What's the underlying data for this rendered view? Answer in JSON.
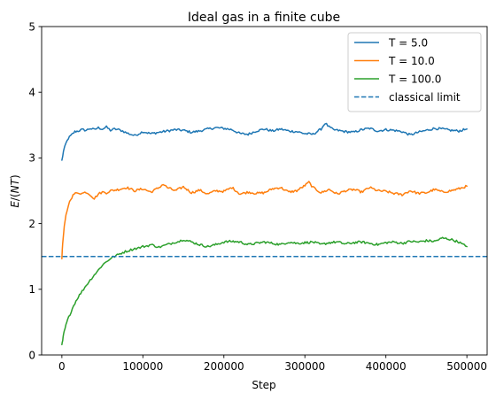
{
  "chart_data": {
    "type": "line",
    "title": "Ideal gas in a finite cube",
    "xlabel": "Step",
    "ylabel_prefix": "E",
    "ylabel_open": "/(",
    "ylabel_italic": "NT",
    "ylabel_close": ")",
    "xlim": [
      -25000,
      525000
    ],
    "ylim": [
      0,
      5
    ],
    "xticks": [
      0,
      100000,
      200000,
      300000,
      400000,
      500000
    ],
    "xtick_labels": [
      "0",
      "100000",
      "200000",
      "300000",
      "400000",
      "500000"
    ],
    "yticks": [
      0,
      1,
      2,
      3,
      4,
      5
    ],
    "ytick_labels": [
      "0",
      "1",
      "2",
      "3",
      "4",
      "5"
    ],
    "grid": false,
    "legend_position": "top-right",
    "series": [
      {
        "name": "T = 5.0",
        "color": "#1f77b4",
        "style": "solid",
        "x": [
          0,
          2000,
          5000,
          8000,
          12000,
          16000,
          20000,
          25000,
          30000,
          35000,
          40000,
          45000,
          50000,
          55000,
          60000,
          65000,
          70000,
          75000,
          80000,
          85000,
          90000,
          95000,
          100000,
          110000,
          120000,
          130000,
          140000,
          150000,
          160000,
          170000,
          180000,
          190000,
          200000,
          210000,
          220000,
          230000,
          240000,
          250000,
          260000,
          270000,
          280000,
          290000,
          300000,
          310000,
          320000,
          325000,
          330000,
          335000,
          340000,
          350000,
          360000,
          370000,
          380000,
          390000,
          400000,
          410000,
          420000,
          430000,
          440000,
          450000,
          460000,
          470000,
          480000,
          490000,
          500000
        ],
        "y": [
          2.96,
          3.1,
          3.22,
          3.3,
          3.35,
          3.4,
          3.41,
          3.43,
          3.42,
          3.45,
          3.43,
          3.46,
          3.44,
          3.47,
          3.42,
          3.44,
          3.43,
          3.41,
          3.38,
          3.36,
          3.34,
          3.37,
          3.4,
          3.37,
          3.39,
          3.41,
          3.43,
          3.42,
          3.39,
          3.41,
          3.44,
          3.46,
          3.45,
          3.43,
          3.37,
          3.36,
          3.41,
          3.44,
          3.41,
          3.44,
          3.41,
          3.4,
          3.37,
          3.36,
          3.44,
          3.53,
          3.47,
          3.43,
          3.42,
          3.4,
          3.39,
          3.43,
          3.45,
          3.41,
          3.43,
          3.42,
          3.4,
          3.35,
          3.39,
          3.42,
          3.45,
          3.44,
          3.42,
          3.41,
          3.44
        ]
      },
      {
        "name": "T = 10.0",
        "color": "#ff7f0e",
        "style": "solid",
        "x": [
          0,
          1000,
          3000,
          5000,
          8000,
          11000,
          15000,
          20000,
          25000,
          30000,
          35000,
          40000,
          45000,
          50000,
          55000,
          60000,
          70000,
          80000,
          90000,
          100000,
          110000,
          120000,
          125000,
          130000,
          140000,
          150000,
          160000,
          170000,
          180000,
          190000,
          200000,
          210000,
          220000,
          230000,
          240000,
          250000,
          260000,
          270000,
          280000,
          290000,
          300000,
          305000,
          310000,
          320000,
          330000,
          340000,
          350000,
          360000,
          370000,
          380000,
          390000,
          400000,
          410000,
          420000,
          430000,
          440000,
          450000,
          460000,
          470000,
          480000,
          490000,
          500000
        ],
        "y": [
          1.48,
          1.7,
          1.95,
          2.12,
          2.28,
          2.38,
          2.45,
          2.47,
          2.46,
          2.48,
          2.44,
          2.38,
          2.45,
          2.48,
          2.47,
          2.5,
          2.52,
          2.55,
          2.5,
          2.53,
          2.48,
          2.55,
          2.6,
          2.55,
          2.5,
          2.56,
          2.47,
          2.51,
          2.45,
          2.5,
          2.49,
          2.55,
          2.45,
          2.48,
          2.46,
          2.47,
          2.53,
          2.55,
          2.48,
          2.5,
          2.58,
          2.63,
          2.55,
          2.47,
          2.52,
          2.45,
          2.5,
          2.52,
          2.48,
          2.55,
          2.5,
          2.49,
          2.46,
          2.44,
          2.5,
          2.46,
          2.47,
          2.52,
          2.48,
          2.5,
          2.53,
          2.57
        ]
      },
      {
        "name": "T = 100.0",
        "color": "#2ca02c",
        "style": "solid",
        "x": [
          0,
          1000,
          2000,
          3000,
          5000,
          7000,
          10000,
          13000,
          16000,
          20000,
          25000,
          30000,
          35000,
          40000,
          45000,
          50000,
          55000,
          60000,
          65000,
          70000,
          75000,
          80000,
          85000,
          90000,
          95000,
          100000,
          105000,
          110000,
          115000,
          120000,
          125000,
          130000,
          135000,
          140000,
          145000,
          150000,
          160000,
          170000,
          180000,
          190000,
          200000,
          210000,
          220000,
          230000,
          240000,
          250000,
          260000,
          270000,
          280000,
          290000,
          300000,
          310000,
          320000,
          330000,
          340000,
          350000,
          360000,
          370000,
          380000,
          390000,
          400000,
          410000,
          420000,
          430000,
          440000,
          450000,
          460000,
          470000,
          480000,
          490000,
          495000,
          500000
        ],
        "y": [
          0.15,
          0.22,
          0.3,
          0.36,
          0.45,
          0.53,
          0.62,
          0.71,
          0.79,
          0.88,
          0.97,
          1.06,
          1.14,
          1.22,
          1.29,
          1.37,
          1.42,
          1.47,
          1.5,
          1.53,
          1.56,
          1.58,
          1.6,
          1.62,
          1.63,
          1.65,
          1.66,
          1.68,
          1.66,
          1.64,
          1.66,
          1.68,
          1.7,
          1.72,
          1.73,
          1.76,
          1.72,
          1.68,
          1.65,
          1.68,
          1.72,
          1.73,
          1.72,
          1.68,
          1.7,
          1.72,
          1.7,
          1.68,
          1.72,
          1.7,
          1.71,
          1.72,
          1.68,
          1.71,
          1.72,
          1.69,
          1.71,
          1.72,
          1.7,
          1.68,
          1.71,
          1.72,
          1.7,
          1.73,
          1.72,
          1.74,
          1.73,
          1.78,
          1.76,
          1.72,
          1.68,
          1.65
        ]
      },
      {
        "name": "classical limit",
        "color": "#1f77b4",
        "style": "dashed",
        "x": [
          -25000,
          525000
        ],
        "y": [
          1.5,
          1.5
        ]
      }
    ]
  }
}
